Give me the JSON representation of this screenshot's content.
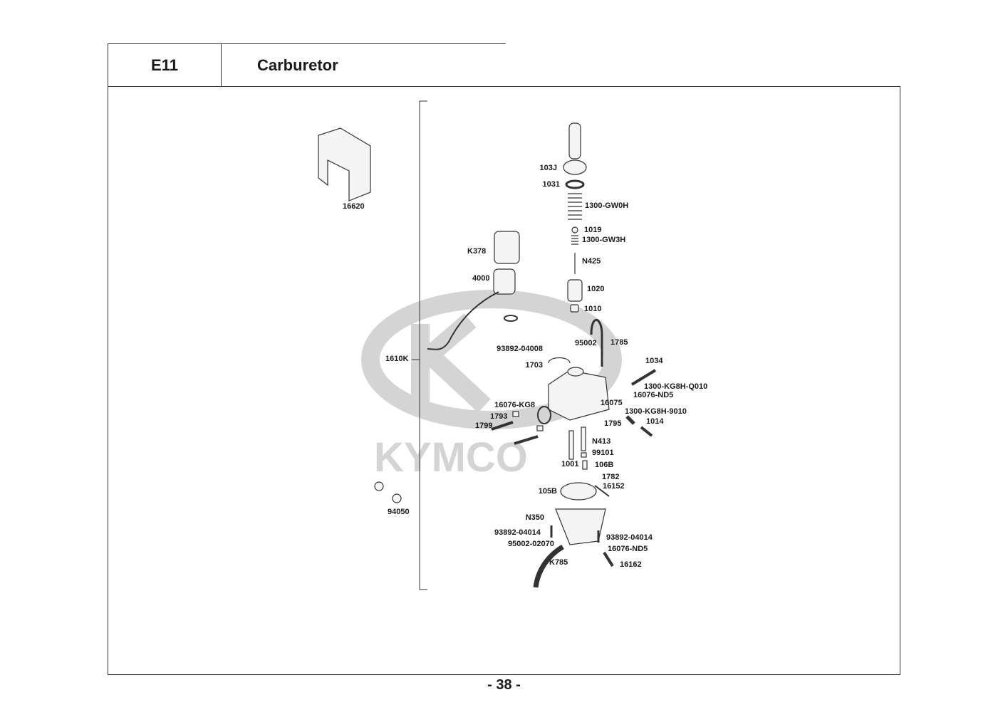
{
  "header": {
    "section_code": "E11",
    "title": "Carburetor"
  },
  "watermark": {
    "brand": "KYMCO"
  },
  "parts": [
    {
      "id": "p16620",
      "label": "16620"
    },
    {
      "id": "p103J",
      "label": "103J"
    },
    {
      "id": "p1031",
      "label": "1031"
    },
    {
      "id": "p1300GW0H",
      "label": "1300-GW0H"
    },
    {
      "id": "p1019",
      "label": "1019"
    },
    {
      "id": "p1300GW3H",
      "label": "1300-GW3H"
    },
    {
      "id": "pN425",
      "label": "N425"
    },
    {
      "id": "p1020",
      "label": "1020"
    },
    {
      "id": "p1010",
      "label": "1010"
    },
    {
      "id": "pK378",
      "label": "K378"
    },
    {
      "id": "p4000",
      "label": "4000"
    },
    {
      "id": "p1785",
      "label": "1785"
    },
    {
      "id": "p95002",
      "label": "95002"
    },
    {
      "id": "p9389204008",
      "label": "93892-04008"
    },
    {
      "id": "p1610K",
      "label": "1610K"
    },
    {
      "id": "p1703",
      "label": "1703"
    },
    {
      "id": "p1034",
      "label": "1034"
    },
    {
      "id": "p1300KG8HQ010",
      "label": "1300-KG8H-Q010"
    },
    {
      "id": "p16076ND5a",
      "label": "16076-ND5"
    },
    {
      "id": "p16076KG8",
      "label": "16076-KG8"
    },
    {
      "id": "p16075",
      "label": "16075"
    },
    {
      "id": "p1793",
      "label": "1793"
    },
    {
      "id": "p1300KG8H9010",
      "label": "1300-KG8H-9010"
    },
    {
      "id": "p1795",
      "label": "1795"
    },
    {
      "id": "p1014",
      "label": "1014"
    },
    {
      "id": "p1799",
      "label": "1799"
    },
    {
      "id": "pN413",
      "label": "N413"
    },
    {
      "id": "p99101",
      "label": "99101"
    },
    {
      "id": "p1001",
      "label": "1001"
    },
    {
      "id": "p106B",
      "label": "106B"
    },
    {
      "id": "p1782",
      "label": "1782"
    },
    {
      "id": "p16152",
      "label": "16152"
    },
    {
      "id": "p105B",
      "label": "105B"
    },
    {
      "id": "pN350",
      "label": "N350"
    },
    {
      "id": "p94050",
      "label": "94050"
    },
    {
      "id": "p9389204014a",
      "label": "93892-04014"
    },
    {
      "id": "p9389204014b",
      "label": "93892-04014"
    },
    {
      "id": "p9500202070",
      "label": "95002-02070"
    },
    {
      "id": "p16076ND5b",
      "label": "16076-ND5"
    },
    {
      "id": "pK785",
      "label": "K785"
    },
    {
      "id": "p16162",
      "label": "16162"
    }
  ],
  "footer": {
    "page_number": "- 38 -"
  }
}
